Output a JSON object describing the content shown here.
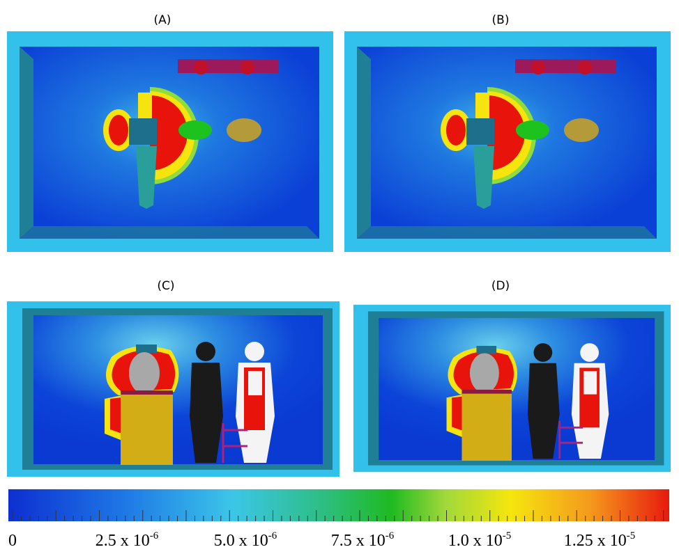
{
  "panels": [
    {
      "label": "(A)"
    },
    {
      "label": "(B)"
    },
    {
      "label": "(C)"
    },
    {
      "label": "(D)"
    }
  ],
  "colorbar": {
    "tick_labels": [
      {
        "base": "0"
      },
      {
        "base": "2.5 x 10",
        "exponent": "-6"
      },
      {
        "base": "5.0 x 10",
        "exponent": "-6"
      },
      {
        "base": "7.5 x 10",
        "exponent": "-6"
      },
      {
        "base": "1.0 x 10",
        "exponent": "-5"
      },
      {
        "base": "1.25 x 10",
        "exponent": "-5"
      }
    ]
  }
}
